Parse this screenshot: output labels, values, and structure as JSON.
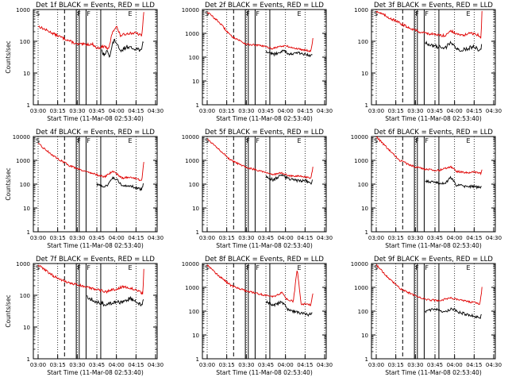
{
  "chart_data": [
    {
      "type": "line",
      "title": "Det 1f BLACK = Events, RED = LLD",
      "ylabel": "Counts/sec",
      "xlabel": "Start Time (11-Mar-08 02:53:40)",
      "y_scale": "log",
      "ylim": [
        1,
        1000
      ],
      "x_ticks": [
        "03:00",
        "03:15",
        "03:30",
        "03:45",
        "04:00",
        "04:15",
        "04:30"
      ],
      "y_ticks": [
        "1",
        "10",
        "100",
        "1000"
      ],
      "markers": [
        "S",
        "F",
        "F",
        "E"
      ],
      "series": [
        {
          "color": "#000000",
          "kind": "black"
        },
        {
          "color": "#e00000",
          "kind": "red"
        }
      ],
      "black_profile": [
        [
          3,
          null
        ],
        [
          3.25,
          50
        ],
        [
          3.3,
          40
        ],
        [
          3.45,
          35
        ],
        [
          3.5,
          60
        ],
        [
          3.6,
          45
        ],
        [
          3.65,
          30
        ],
        [
          3.8,
          80
        ],
        [
          3.9,
          110
        ],
        [
          4.0,
          90
        ],
        [
          4.2,
          45
        ],
        [
          4.4,
          60
        ],
        [
          4.6,
          70
        ],
        [
          4.75,
          60
        ],
        [
          4.95,
          60
        ],
        [
          5.2,
          55
        ],
        [
          5.3,
          50
        ],
        [
          5.35,
          90
        ]
      ],
      "red_profile": [
        [
          0,
          300
        ],
        [
          1,
          150
        ],
        [
          2,
          80
        ],
        [
          2.8,
          80
        ],
        [
          3.0,
          60
        ],
        [
          3.4,
          70
        ],
        [
          3.6,
          55
        ],
        [
          3.8,
          200
        ],
        [
          4.0,
          300
        ],
        [
          4.2,
          150
        ],
        [
          4.6,
          180
        ],
        [
          5.0,
          180
        ],
        [
          5.3,
          150
        ],
        [
          5.4,
          900
        ]
      ]
    },
    {
      "type": "line",
      "title": "Det 2f BLACK = Events, RED = LLD",
      "ylabel": "",
      "xlabel": "Start Time (11-Mar-08 02:53:40)",
      "y_scale": "log",
      "ylim": [
        1,
        10000
      ],
      "x_ticks": [
        "03:00",
        "03:15",
        "03:30",
        "03:45",
        "04:00",
        "04:15",
        "04:30"
      ],
      "y_ticks": [
        "1",
        "10",
        "100",
        "1000",
        "10000"
      ],
      "markers": [
        "S",
        "F",
        "F",
        "E"
      ],
      "series": [
        {
          "color": "#000000",
          "kind": "black"
        },
        {
          "color": "#e00000",
          "kind": "red"
        }
      ],
      "black_profile": [
        [
          2.9,
          null
        ],
        [
          3.0,
          180
        ],
        [
          3.4,
          130
        ],
        [
          3.7,
          160
        ],
        [
          3.9,
          200
        ],
        [
          4.2,
          130
        ],
        [
          4.6,
          150
        ],
        [
          5.0,
          130
        ],
        [
          5.3,
          110
        ],
        [
          5.4,
          150
        ]
      ],
      "red_profile": [
        [
          0,
          8000
        ],
        [
          0.6,
          3000
        ],
        [
          1.2,
          800
        ],
        [
          2.0,
          350
        ],
        [
          2.8,
          300
        ],
        [
          3.3,
          230
        ],
        [
          3.7,
          280
        ],
        [
          4.0,
          300
        ],
        [
          4.4,
          240
        ],
        [
          5.0,
          200
        ],
        [
          5.3,
          180
        ],
        [
          5.4,
          600
        ]
      ]
    },
    {
      "type": "line",
      "title": "Det 3f BLACK = Events, RED = LLD",
      "ylabel": "",
      "xlabel": "Start Time (11-Mar-08 02:53:40)",
      "y_scale": "log",
      "ylim": [
        1,
        1000
      ],
      "x_ticks": [
        "03:00",
        "03:15",
        "03:30",
        "03:45",
        "04:00",
        "04:15",
        "04:30"
      ],
      "y_ticks": [
        "1",
        "10",
        "100",
        "1000"
      ],
      "markers": [
        "S",
        "F",
        "F",
        "E"
      ],
      "series": [
        {
          "color": "#000000",
          "kind": "black"
        },
        {
          "color": "#e00000",
          "kind": "red"
        }
      ],
      "black_profile": [
        [
          2.4,
          null
        ],
        [
          2.5,
          90
        ],
        [
          3.0,
          70
        ],
        [
          3.5,
          60
        ],
        [
          3.8,
          90
        ],
        [
          4.0,
          70
        ],
        [
          4.3,
          50
        ],
        [
          4.7,
          60
        ],
        [
          5.0,
          70
        ],
        [
          5.3,
          50
        ],
        [
          5.4,
          80
        ]
      ],
      "red_profile": [
        [
          0,
          900
        ],
        [
          0.8,
          500
        ],
        [
          1.5,
          300
        ],
        [
          2.2,
          200
        ],
        [
          3.0,
          160
        ],
        [
          3.5,
          150
        ],
        [
          3.8,
          220
        ],
        [
          4.0,
          180
        ],
        [
          4.4,
          150
        ],
        [
          4.8,
          180
        ],
        [
          5.2,
          160
        ],
        [
          5.35,
          120
        ],
        [
          5.4,
          900
        ]
      ]
    },
    {
      "type": "line",
      "title": "Det 4f BLACK = Events, RED = LLD",
      "ylabel": "Counts/sec",
      "xlabel": "Start Time (11-Mar-08 02:53:40)",
      "y_scale": "log",
      "ylim": [
        1,
        10000
      ],
      "x_ticks": [
        "03:00",
        "03:15",
        "03:30",
        "03:45",
        "04:00",
        "04:15",
        "04:30"
      ],
      "y_ticks": [
        "1",
        "10",
        "100",
        "1000",
        "10000"
      ],
      "markers": [
        "S",
        "F",
        "F",
        "E"
      ],
      "series": [
        {
          "color": "#000000",
          "kind": "black"
        },
        {
          "color": "#e00000",
          "kind": "red"
        }
      ],
      "black_profile": [
        [
          2.9,
          null
        ],
        [
          3.0,
          100
        ],
        [
          3.4,
          80
        ],
        [
          3.6,
          100
        ],
        [
          3.85,
          200
        ],
        [
          4.0,
          160
        ],
        [
          4.3,
          80
        ],
        [
          4.7,
          90
        ],
        [
          5.0,
          70
        ],
        [
          5.3,
          60
        ],
        [
          5.4,
          120
        ]
      ],
      "red_profile": [
        [
          0,
          5000
        ],
        [
          0.8,
          1500
        ],
        [
          1.6,
          600
        ],
        [
          2.4,
          350
        ],
        [
          3.0,
          250
        ],
        [
          3.4,
          200
        ],
        [
          3.8,
          350
        ],
        [
          4.0,
          280
        ],
        [
          4.3,
          180
        ],
        [
          4.7,
          200
        ],
        [
          5.0,
          170
        ],
        [
          5.3,
          140
        ],
        [
          5.4,
          900
        ]
      ]
    },
    {
      "type": "line",
      "title": "Det 5f BLACK = Events, RED = LLD",
      "ylabel": "",
      "xlabel": "Start Time (11-Mar-08 02:53:40)",
      "y_scale": "log",
      "ylim": [
        1,
        10000
      ],
      "x_ticks": [
        "03:00",
        "03:15",
        "03:30",
        "03:45",
        "04:00",
        "04:15",
        "04:30"
      ],
      "y_ticks": [
        "1",
        "10",
        "100",
        "1000",
        "10000"
      ],
      "markers": [
        "S",
        "F",
        "F",
        "E"
      ],
      "series": [
        {
          "color": "#000000",
          "kind": "black"
        },
        {
          "color": "#e00000",
          "kind": "red"
        }
      ],
      "black_profile": [
        [
          2.9,
          null
        ],
        [
          3.0,
          200
        ],
        [
          3.4,
          150
        ],
        [
          3.8,
          250
        ],
        [
          4.2,
          160
        ],
        [
          4.6,
          140
        ],
        [
          5.0,
          140
        ],
        [
          5.3,
          110
        ],
        [
          5.4,
          160
        ]
      ],
      "red_profile": [
        [
          0,
          8000
        ],
        [
          0.6,
          3000
        ],
        [
          1.2,
          1000
        ],
        [
          2.0,
          500
        ],
        [
          2.8,
          350
        ],
        [
          3.4,
          250
        ],
        [
          3.8,
          300
        ],
        [
          4.2,
          220
        ],
        [
          4.6,
          220
        ],
        [
          5.0,
          200
        ],
        [
          5.3,
          170
        ],
        [
          5.4,
          500
        ]
      ]
    },
    {
      "type": "line",
      "title": "Det 6f BLACK = Events, RED = LLD",
      "ylabel": "",
      "xlabel": "Start Time (11-Mar-08 02:53:40)",
      "y_scale": "log",
      "ylim": [
        1,
        10000
      ],
      "x_ticks": [
        "03:00",
        "03:15",
        "03:30",
        "03:45",
        "04:00",
        "04:15",
        "04:30"
      ],
      "y_ticks": [
        "1",
        "10",
        "100",
        "1000",
        "10000"
      ],
      "markers": [
        "S",
        "F",
        "F",
        "E"
      ],
      "series": [
        {
          "color": "#000000",
          "kind": "black"
        },
        {
          "color": "#e00000",
          "kind": "red"
        }
      ],
      "black_profile": [
        [
          2.4,
          null
        ],
        [
          2.5,
          130
        ],
        [
          3.0,
          120
        ],
        [
          3.5,
          100
        ],
        [
          3.8,
          200
        ],
        [
          4.1,
          90
        ],
        [
          4.6,
          80
        ],
        [
          5.0,
          80
        ],
        [
          5.35,
          70
        ],
        [
          5.4,
          100
        ]
      ],
      "red_profile": [
        [
          0,
          10000
        ],
        [
          0.6,
          3000
        ],
        [
          1.2,
          1000
        ],
        [
          1.8,
          600
        ],
        [
          2.5,
          420
        ],
        [
          3.2,
          380
        ],
        [
          3.8,
          550
        ],
        [
          4.1,
          350
        ],
        [
          4.6,
          300
        ],
        [
          5.0,
          320
        ],
        [
          5.35,
          280
        ],
        [
          5.4,
          400
        ]
      ]
    },
    {
      "type": "line",
      "title": "Det 7f BLACK = Events, RED = LLD",
      "ylabel": "Counts/sec",
      "xlabel": "Start Time (11-Mar-08 02:53:40)",
      "y_scale": "log",
      "ylim": [
        1,
        1000
      ],
      "x_ticks": [
        "03:00",
        "03:15",
        "03:30",
        "03:45",
        "04:00",
        "04:15",
        "04:30"
      ],
      "y_ticks": [
        "1",
        "10",
        "100",
        "1000"
      ],
      "markers": [
        "S",
        "F",
        "F",
        "E"
      ],
      "series": [
        {
          "color": "#000000",
          "kind": "black"
        },
        {
          "color": "#e00000",
          "kind": "red"
        }
      ],
      "black_profile": [
        [
          2.4,
          null
        ],
        [
          2.5,
          90
        ],
        [
          3.0,
          60
        ],
        [
          3.5,
          50
        ],
        [
          4.0,
          60
        ],
        [
          4.3,
          60
        ],
        [
          4.7,
          80
        ],
        [
          5.0,
          60
        ],
        [
          5.3,
          50
        ],
        [
          5.4,
          70
        ]
      ],
      "red_profile": [
        [
          0,
          900
        ],
        [
          0.8,
          400
        ],
        [
          1.5,
          250
        ],
        [
          2.2,
          200
        ],
        [
          3.0,
          150
        ],
        [
          3.5,
          130
        ],
        [
          4.0,
          160
        ],
        [
          4.4,
          190
        ],
        [
          4.8,
          160
        ],
        [
          5.2,
          130
        ],
        [
          5.35,
          110
        ],
        [
          5.4,
          700
        ]
      ]
    },
    {
      "type": "line",
      "title": "Det 8f BLACK = Events, RED = LLD",
      "ylabel": "",
      "xlabel": "Start Time (11-Mar-08 02:53:40)",
      "y_scale": "log",
      "ylim": [
        1,
        10000
      ],
      "x_ticks": [
        "03:00",
        "03:15",
        "03:30",
        "03:45",
        "04:00",
        "04:15",
        "04:30"
      ],
      "y_ticks": [
        "1",
        "10",
        "100",
        "1000",
        "10000"
      ],
      "markers": [
        "S",
        "F",
        "F",
        "E"
      ],
      "series": [
        {
          "color": "#000000",
          "kind": "black"
        },
        {
          "color": "#e00000",
          "kind": "red"
        }
      ],
      "black_profile": [
        [
          2.9,
          null
        ],
        [
          3.0,
          250
        ],
        [
          3.4,
          180
        ],
        [
          3.8,
          250
        ],
        [
          4.1,
          120
        ],
        [
          4.4,
          100
        ],
        [
          4.6,
          90
        ],
        [
          4.9,
          80
        ],
        [
          5.2,
          70
        ],
        [
          5.4,
          90
        ]
      ],
      "red_profile": [
        [
          0,
          9000
        ],
        [
          0.6,
          3000
        ],
        [
          1.2,
          1200
        ],
        [
          2.0,
          700
        ],
        [
          2.8,
          500
        ],
        [
          3.4,
          400
        ],
        [
          3.8,
          600
        ],
        [
          4.1,
          300
        ],
        [
          4.4,
          260
        ],
        [
          4.6,
          6000
        ],
        [
          4.8,
          200
        ],
        [
          5.0,
          200
        ],
        [
          5.3,
          180
        ],
        [
          5.4,
          600
        ]
      ]
    },
    {
      "type": "line",
      "title": "Det 9f BLACK = Events, RED = LLD",
      "ylabel": "",
      "xlabel": "Start Time (11-Mar-08 02:53:40)",
      "y_scale": "log",
      "ylim": [
        1,
        10000
      ],
      "x_ticks": [
        "03:00",
        "03:15",
        "03:30",
        "03:45",
        "04:00",
        "04:15",
        "04:30"
      ],
      "y_ticks": [
        "1",
        "10",
        "100",
        "1000",
        "10000"
      ],
      "markers": [
        "S",
        "F",
        "F",
        "E"
      ],
      "series": [
        {
          "color": "#000000",
          "kind": "black"
        },
        {
          "color": "#e00000",
          "kind": "red"
        }
      ],
      "black_profile": [
        [
          2.4,
          null
        ],
        [
          2.5,
          100
        ],
        [
          3.0,
          120
        ],
        [
          3.5,
          90
        ],
        [
          3.9,
          130
        ],
        [
          4.2,
          90
        ],
        [
          4.7,
          70
        ],
        [
          5.0,
          60
        ],
        [
          5.3,
          50
        ],
        [
          5.4,
          80
        ]
      ],
      "red_profile": [
        [
          0,
          9000
        ],
        [
          0.6,
          2500
        ],
        [
          1.3,
          800
        ],
        [
          2.0,
          450
        ],
        [
          2.6,
          300
        ],
        [
          3.2,
          280
        ],
        [
          3.8,
          350
        ],
        [
          4.2,
          300
        ],
        [
          4.7,
          250
        ],
        [
          5.0,
          230
        ],
        [
          5.3,
          200
        ],
        [
          5.4,
          1000
        ]
      ]
    }
  ]
}
